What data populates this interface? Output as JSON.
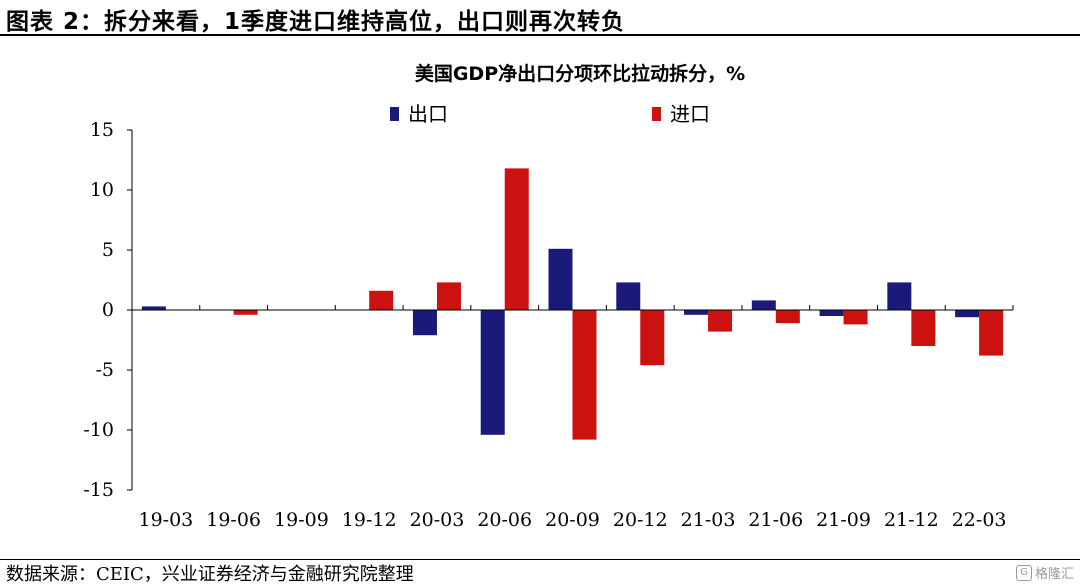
{
  "figure_title": "图表 2：拆分来看，1季度进口维持高位，出口则再次转负",
  "source_note": "数据来源：CEIC，兴业证券经济与金融研究院整理",
  "watermark": {
    "icon": "gelonghui-logo-icon",
    "text": "格隆汇"
  },
  "colors": {
    "export": "#1a1a7a",
    "import": "#cc1111"
  },
  "chart_data": {
    "type": "bar",
    "title": "美国GDP净出口分项环比拉动拆分，%",
    "xlabel": "",
    "ylabel": "",
    "categories": [
      "19-03",
      "19-06",
      "19-09",
      "19-12",
      "20-03",
      "20-06",
      "20-09",
      "20-12",
      "21-03",
      "21-06",
      "21-09",
      "21-12",
      "22-03"
    ],
    "ylim": [
      -15,
      15
    ],
    "yticks": [
      15,
      10,
      5,
      0,
      -5,
      -10,
      -15
    ],
    "grid": false,
    "legend_position": "top",
    "series": [
      {
        "name": "出口",
        "values": [
          0.3,
          0,
          0,
          0,
          -2.1,
          -10.4,
          5.1,
          2.3,
          -0.4,
          0.8,
          -0.5,
          2.3,
          -0.6
        ]
      },
      {
        "name": "进口",
        "values": [
          0,
          -0.4,
          0,
          1.6,
          2.3,
          11.8,
          -10.8,
          -4.6,
          -1.8,
          -1.1,
          -1.2,
          -3.0,
          -3.8
        ]
      }
    ]
  }
}
